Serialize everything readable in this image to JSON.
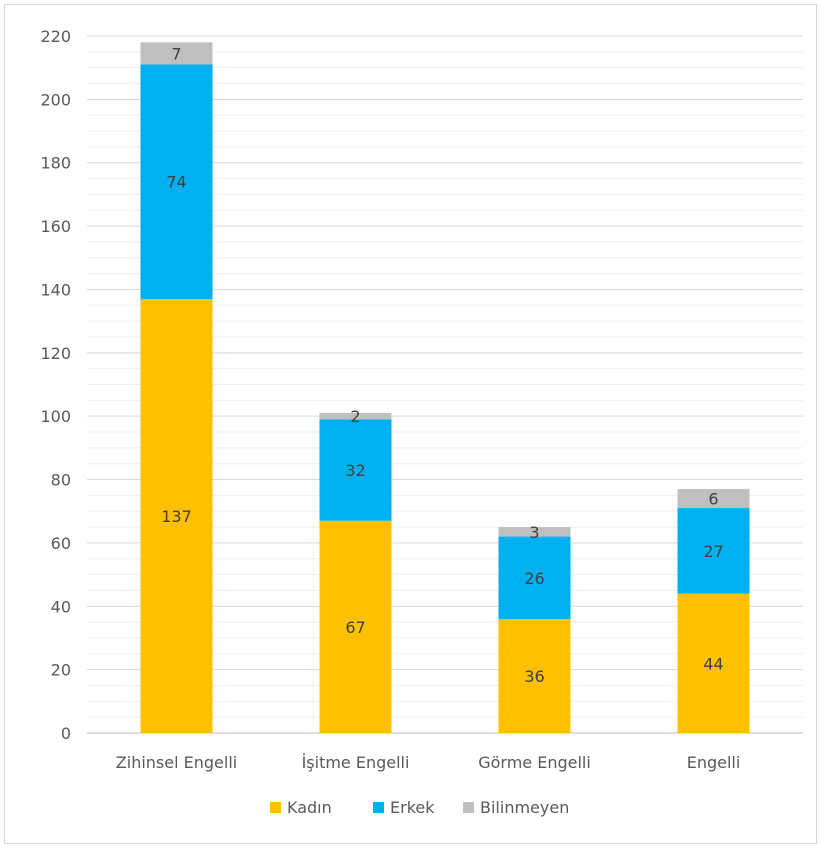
{
  "chart_data": {
    "type": "bar",
    "stacked": true,
    "categories": [
      "Zihinsel Engelli",
      "İşitme Engelli",
      "Görme Engelli",
      "Engelli"
    ],
    "series": [
      {
        "name": "Kadın",
        "color": "#FFC000",
        "values": [
          137,
          67,
          36,
          44
        ]
      },
      {
        "name": "Erkek",
        "color": "#00B0F0",
        "values": [
          74,
          32,
          26,
          27
        ]
      },
      {
        "name": "Bilinmeyen",
        "color": "#BFBFBF",
        "values": [
          7,
          2,
          3,
          6
        ]
      }
    ],
    "ylim": [
      0,
      220
    ],
    "y_ticks": [
      0,
      20,
      40,
      60,
      80,
      100,
      120,
      140,
      160,
      180,
      200,
      220
    ],
    "y_tick_labels": [
      "0",
      "20",
      "40",
      "60",
      "80",
      "100",
      "120",
      "140",
      "160",
      "180",
      "200",
      "220"
    ],
    "minor_gridlines": true,
    "grid": true,
    "legend_position": "bottom",
    "title": "",
    "xlabel": "",
    "ylabel": ""
  }
}
